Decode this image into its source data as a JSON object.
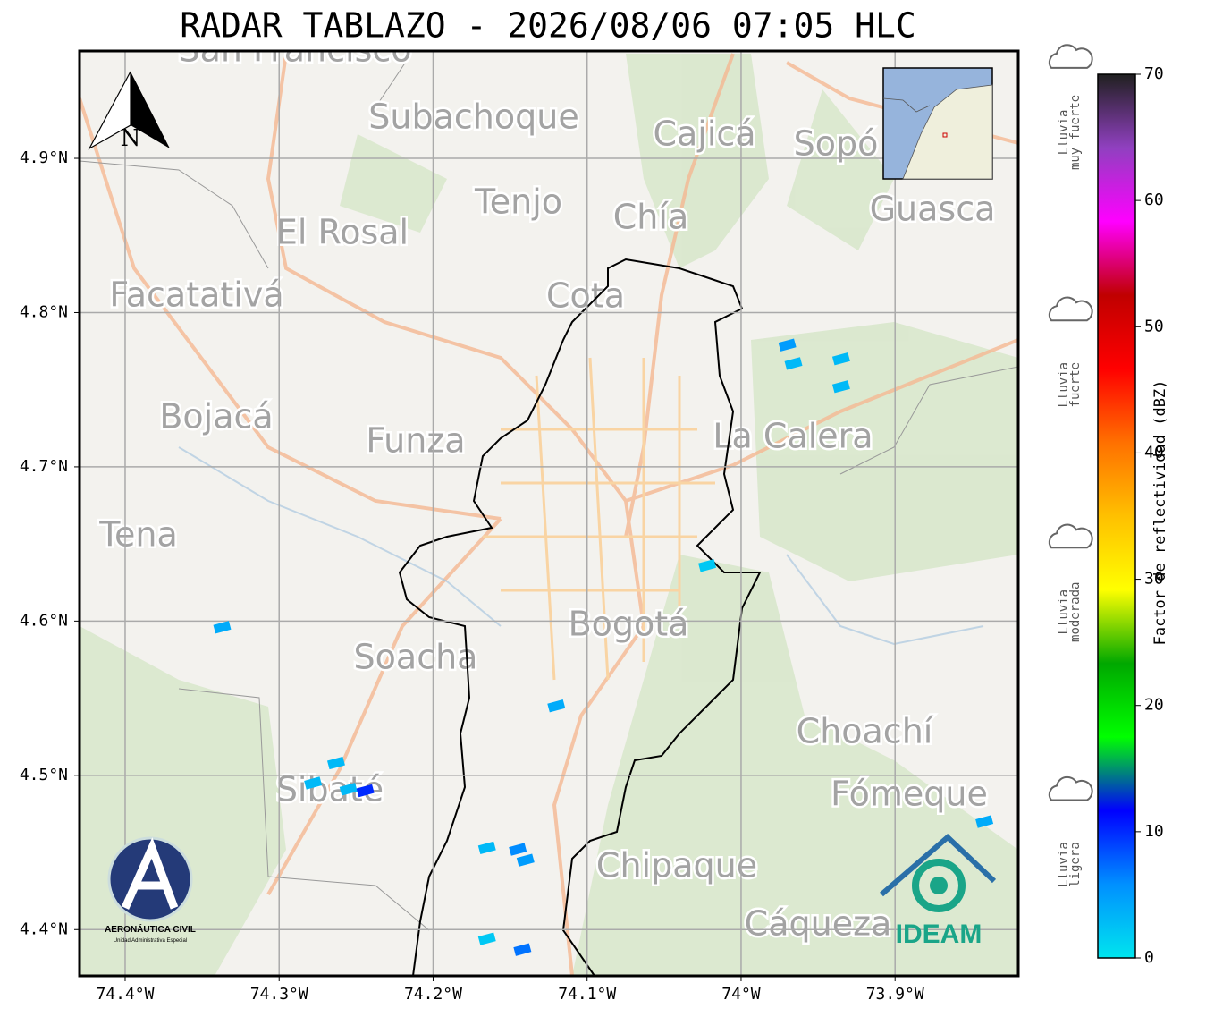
{
  "header": {
    "title": "RADAR TABLAZO - 2026/08/06 07:05 HLC"
  },
  "map": {
    "xlim": [
      -74.4296,
      -73.82
    ],
    "ylim": [
      4.37,
      4.9696
    ],
    "xticks": [
      {
        "value": -74.4,
        "label": "74.4°W"
      },
      {
        "value": -74.3,
        "label": "74.3°W"
      },
      {
        "value": -74.2,
        "label": "74.2°W"
      },
      {
        "value": -74.1,
        "label": "74.1°W"
      },
      {
        "value": -74.0,
        "label": "74°W"
      },
      {
        "value": -73.9,
        "label": "73.9°W"
      }
    ],
    "yticks": [
      {
        "value": 4.9,
        "label": "4.9°N"
      },
      {
        "value": 4.8,
        "label": "4.8°N"
      },
      {
        "value": 4.7,
        "label": "4.7°N"
      },
      {
        "value": 4.6,
        "label": "4.6°N"
      },
      {
        "value": 4.5,
        "label": "4.5°N"
      },
      {
        "value": 4.4,
        "label": "4.4°N"
      }
    ],
    "grid": true,
    "places": [
      "San Francisco",
      "Subachoque",
      "Cajicá",
      "Sopó",
      "Tenjo",
      "Chía",
      "Guasca",
      "El Rosal",
      "Facatativá",
      "Cota",
      "Bojacá",
      "Funza",
      "La Calera",
      "Tena",
      "Bogotá",
      "Soacha",
      "Choachí",
      "Sibaté",
      "Fómeque",
      "Chipaque",
      "Cáqueza"
    ],
    "north": "N",
    "echoes": [
      {
        "lon": -73.97,
        "lat": 4.779,
        "dbz": 5
      },
      {
        "lon": -73.966,
        "lat": 4.767,
        "dbz": 3
      },
      {
        "lon": -73.935,
        "lat": 4.77,
        "dbz": 3
      },
      {
        "lon": -73.935,
        "lat": 4.752,
        "dbz": 3
      },
      {
        "lon": -74.022,
        "lat": 4.636,
        "dbz": 2
      },
      {
        "lon": -74.337,
        "lat": 4.596,
        "dbz": 4
      },
      {
        "lon": -74.12,
        "lat": 4.545,
        "dbz": 4
      },
      {
        "lon": -74.263,
        "lat": 4.508,
        "dbz": 3
      },
      {
        "lon": -74.278,
        "lat": 4.495,
        "dbz": 3
      },
      {
        "lon": -74.255,
        "lat": 4.491,
        "dbz": 3
      },
      {
        "lon": -74.244,
        "lat": 4.49,
        "dbz": 10
      },
      {
        "lon": -74.165,
        "lat": 4.453,
        "dbz": 3
      },
      {
        "lon": -74.145,
        "lat": 4.452,
        "dbz": 6
      },
      {
        "lon": -74.14,
        "lat": 4.445,
        "dbz": 5
      },
      {
        "lon": -74.165,
        "lat": 4.394,
        "dbz": 2
      },
      {
        "lon": -74.142,
        "lat": 4.387,
        "dbz": 7
      },
      {
        "lon": -73.842,
        "lat": 4.47,
        "dbz": 4
      }
    ]
  },
  "colorbar": {
    "label": "Factor de reflectividad (dBZ)",
    "lim": [
      0,
      70
    ],
    "ticks": [
      0,
      10,
      20,
      30,
      40,
      50,
      60,
      70
    ],
    "colors": [
      "#00e5ee",
      "#0090ff",
      "#0000ff",
      "#00ff00",
      "#00a800",
      "#ffff00",
      "#ffc000",
      "#ff7000",
      "#ff0000",
      "#c00000",
      "#ff00ff",
      "#9040c0",
      "#202020"
    ],
    "categories": [
      {
        "lines": [
          "Lluvia",
          "muy fuerte"
        ],
        "value": 62
      },
      {
        "lines": [
          "Lluvia",
          "fuerte"
        ],
        "value": 42
      },
      {
        "lines": [
          "Lluvia",
          "moderada"
        ],
        "value": 24
      },
      {
        "lines": [
          "Lluvia",
          "ligera"
        ],
        "value": 4
      }
    ]
  },
  "logos": {
    "aerocivil": "AERONÁUTICA CIVIL",
    "aerocivil_sub": "Unidad Administrativa Especial",
    "ideam": "IDEAM"
  }
}
